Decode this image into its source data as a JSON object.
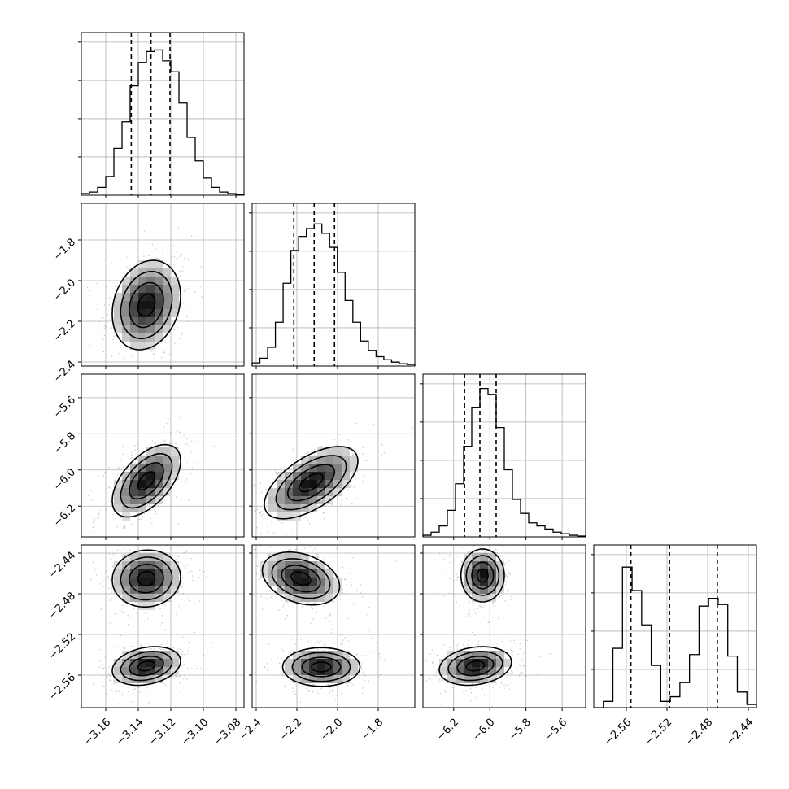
{
  "chart_data": {
    "type": "corner",
    "parameters": [
      {
        "range": [
          -3.175,
          -3.075
        ],
        "ticks": [
          -3.16,
          -3.14,
          -3.12,
          -3.1,
          -3.08
        ],
        "tick_labels": [
          "−3.16",
          "−3.14",
          "−3.12",
          "−3.10",
          "−3.08"
        ],
        "quantiles": [
          -3.1443,
          -3.1322,
          -3.1205
        ],
        "hist": [
          0.01,
          0.02,
          0.05,
          0.12,
          0.3,
          0.47,
          0.7,
          0.85,
          0.92,
          0.93,
          0.86,
          0.79,
          0.59,
          0.37,
          0.22,
          0.11,
          0.05,
          0.02,
          0.01,
          0.005
        ]
      },
      {
        "range": [
          -2.42,
          -1.62
        ],
        "ticks": [
          -2.4,
          -2.2,
          -2.0,
          -1.8
        ],
        "tick_labels": [
          "−2.4",
          "−2.2",
          "−2.0",
          "−1.8"
        ],
        "quantiles": [
          -2.215,
          -2.115,
          -2.015
        ],
        "hist": [
          0.02,
          0.05,
          0.12,
          0.28,
          0.53,
          0.74,
          0.83,
          0.88,
          0.91,
          0.85,
          0.76,
          0.6,
          0.42,
          0.28,
          0.16,
          0.1,
          0.06,
          0.04,
          0.025,
          0.015,
          0.01
        ]
      },
      {
        "range": [
          -6.37,
          -5.47
        ],
        "ticks": [
          -6.2,
          -6.0,
          -5.8,
          -5.6
        ],
        "tick_labels": [
          "−6.2",
          "−6.0",
          "−5.8",
          "−5.6"
        ],
        "quantiles": [
          -6.14,
          -6.055,
          -5.965
        ],
        "hist": [
          0.01,
          0.03,
          0.07,
          0.17,
          0.34,
          0.58,
          0.83,
          0.95,
          0.91,
          0.7,
          0.43,
          0.24,
          0.15,
          0.09,
          0.07,
          0.05,
          0.03,
          0.02,
          0.01,
          0.005
        ]
      },
      {
        "range": [
          -2.592,
          -2.432
        ],
        "ticks": [
          -2.56,
          -2.52,
          -2.48,
          -2.44
        ],
        "tick_labels": [
          "−2.56",
          "−2.52",
          "−2.48",
          "−2.44"
        ],
        "quantiles": [
          -2.5555,
          -2.5175,
          -2.4705
        ],
        "hist": [
          0.0,
          0.04,
          0.38,
          0.9,
          0.75,
          0.53,
          0.27,
          0.04,
          0.07,
          0.16,
          0.34,
          0.65,
          0.7,
          0.66,
          0.33,
          0.1,
          0.02
        ]
      }
    ],
    "pairs": [
      {
        "x": 0,
        "y": 1,
        "cx": -3.135,
        "cy": -2.12,
        "sx": 0.0105,
        "sy": 0.11,
        "rho": 0.2
      },
      {
        "x": 0,
        "y": 2,
        "cx": -3.135,
        "cy": -6.06,
        "sx": 0.0105,
        "sy": 0.1,
        "rho": 0.55
      },
      {
        "x": 1,
        "y": 2,
        "cx": -2.13,
        "cy": -6.07,
        "sx": 0.115,
        "sy": 0.1,
        "rho": 0.6
      },
      {
        "x": 0,
        "y": 3,
        "modes": [
          {
            "cx": -3.135,
            "cy": -2.465,
            "sx": 0.0105,
            "sy": 0.014,
            "rho": 0.05
          },
          {
            "cx": -3.135,
            "cy": -2.551,
            "sx": 0.0105,
            "sy": 0.0095,
            "rho": 0.25
          }
        ]
      },
      {
        "x": 1,
        "y": 3,
        "modes": [
          {
            "cx": -2.18,
            "cy": -2.465,
            "sx": 0.095,
            "sy": 0.013,
            "rho": -0.3
          },
          {
            "cx": -2.08,
            "cy": -2.552,
            "sx": 0.095,
            "sy": 0.0095,
            "rho": 0.0
          }
        ]
      },
      {
        "x": 2,
        "y": 3,
        "modes": [
          {
            "cx": -6.04,
            "cy": -2.462,
            "sx": 0.06,
            "sy": 0.013,
            "rho": 0.0
          },
          {
            "cx": -6.08,
            "cy": -2.551,
            "sx": 0.1,
            "sy": 0.0095,
            "rho": 0.2
          }
        ]
      }
    ],
    "grid": true,
    "contour_levels_sigma": [
      0.5,
      1.0,
      1.5,
      2.0
    ],
    "colors": {
      "line": "#000000",
      "points": "#555555",
      "grid": "#b0b0b0"
    }
  }
}
